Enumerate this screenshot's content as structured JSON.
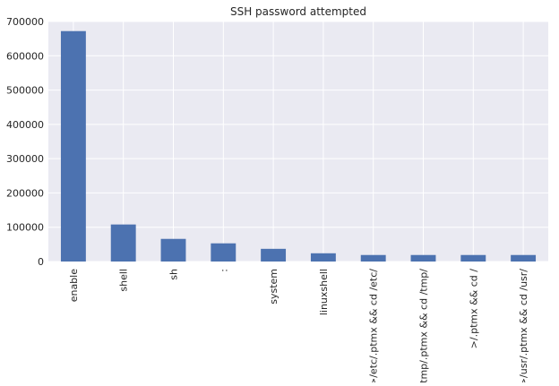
{
  "chart_data": {
    "type": "bar",
    "title": "SSH password attempted",
    "xlabel": "",
    "ylabel": "",
    "categories": [
      "enable",
      "shell",
      "sh",
      ":",
      "system",
      "linuxshell",
      ">/etc/.ptmx && cd /etc/",
      ">/tmp/.ptmx && cd /tmp/",
      ">/.ptmx && cd /",
      ">/usr/.ptmx && cd /usr/"
    ],
    "values": [
      672000,
      108000,
      66000,
      53000,
      37000,
      24000,
      19000,
      19000,
      19000,
      19000
    ],
    "ylim": [
      0,
      700000
    ],
    "yticks": [
      0,
      100000,
      200000,
      300000,
      400000,
      500000,
      600000,
      700000
    ],
    "ytick_labels": [
      "0",
      "100000",
      "200000",
      "300000",
      "400000",
      "500000",
      "600000",
      "700000"
    ],
    "grid": true,
    "legend": "none",
    "colors": {
      "bar": "#4c72b0",
      "plot_background": "#eaeaf2",
      "grid": "#ffffff",
      "text": "#262626"
    }
  }
}
